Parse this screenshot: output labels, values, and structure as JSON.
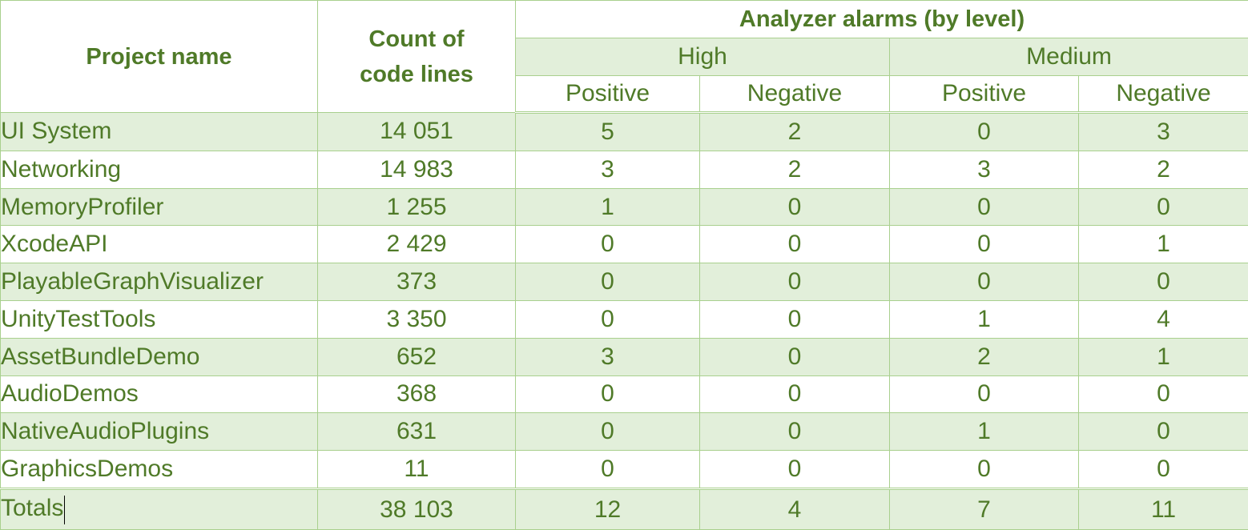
{
  "header": {
    "project_name": "Project name",
    "count_of_code_lines": "Count of\ncode lines",
    "count_line1": "Count of",
    "count_line2": "code lines",
    "analyzer_alarms": "Analyzer alarms (by level)",
    "levels": [
      "High",
      "Medium"
    ],
    "subcolumns": [
      "Positive",
      "Negative",
      "Positive",
      "Negative"
    ]
  },
  "rows": [
    {
      "name": "UI System",
      "lines": "14 051",
      "high_pos": "5",
      "high_neg": "2",
      "med_pos": "0",
      "med_neg": "3"
    },
    {
      "name": "Networking",
      "lines": "14 983",
      "high_pos": "3",
      "high_neg": "2",
      "med_pos": "3",
      "med_neg": "2"
    },
    {
      "name": "MemoryProfiler",
      "lines": "1 255",
      "high_pos": "1",
      "high_neg": "0",
      "med_pos": "0",
      "med_neg": "0"
    },
    {
      "name": "XcodeAPI",
      "lines": "2 429",
      "high_pos": "0",
      "high_neg": "0",
      "med_pos": "0",
      "med_neg": "1"
    },
    {
      "name": "PlayableGraphVisualizer",
      "lines": "373",
      "high_pos": "0",
      "high_neg": "0",
      "med_pos": "0",
      "med_neg": "0"
    },
    {
      "name": "UnityTestTools",
      "lines": "3 350",
      "high_pos": "0",
      "high_neg": "0",
      "med_pos": "1",
      "med_neg": "4"
    },
    {
      "name": "AssetBundleDemo",
      "lines": "652",
      "high_pos": "3",
      "high_neg": "0",
      "med_pos": "2",
      "med_neg": "1"
    },
    {
      "name": "AudioDemos",
      "lines": "368",
      "high_pos": "0",
      "high_neg": "0",
      "med_pos": "0",
      "med_neg": "0"
    },
    {
      "name": "NativeAudioPlugins",
      "lines": "631",
      "high_pos": "0",
      "high_neg": "0",
      "med_pos": "1",
      "med_neg": "0"
    },
    {
      "name": "GraphicsDemos",
      "lines": "11",
      "high_pos": "0",
      "high_neg": "0",
      "med_pos": "0",
      "med_neg": "0"
    }
  ],
  "totals": {
    "name": "Totals",
    "lines": "38 103",
    "high_pos": "12",
    "high_neg": "4",
    "med_pos": "7",
    "med_neg": "11"
  },
  "colors": {
    "text": "#4f7a28",
    "border": "#a9d08e",
    "band": "#e2efda",
    "background": "#ffffff"
  }
}
